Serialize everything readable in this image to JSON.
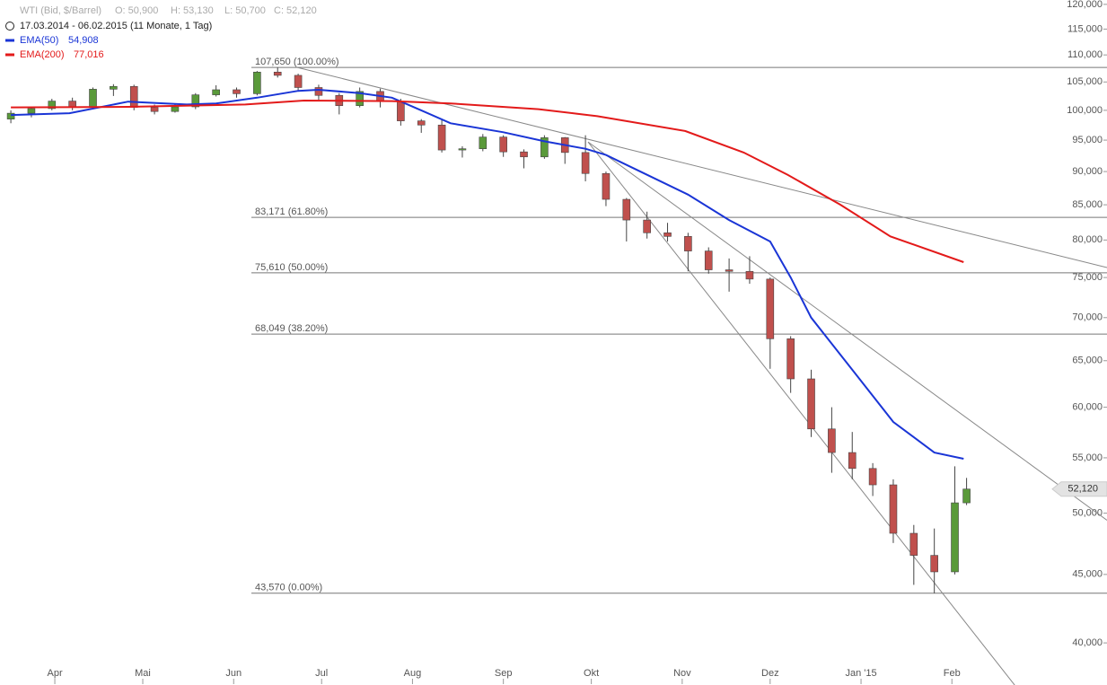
{
  "chart_data": {
    "type": "candlestick",
    "header": {
      "title": "WTI (Bid, $/Barrel)",
      "ohlc": [
        "O: 50,900",
        "H: 53,130",
        "L: 50,700",
        "C: 52,120"
      ],
      "range": "17.03.2014 - 06.02.2015 (11 Monate, 1 Tag)"
    },
    "log_scale": true,
    "xlim": [
      -3.7,
      373.9
    ],
    "ylim": [
      38.55,
      120.9
    ],
    "xticks": [
      {
        "value": 15,
        "label": "Apr"
      },
      {
        "value": 45,
        "label": "Mai"
      },
      {
        "value": 76,
        "label": "Jun"
      },
      {
        "value": 106,
        "label": "Jul"
      },
      {
        "value": 137,
        "label": "Aug"
      },
      {
        "value": 168,
        "label": "Sep"
      },
      {
        "value": 198,
        "label": "Okt"
      },
      {
        "value": 229,
        "label": "Nov"
      },
      {
        "value": 259,
        "label": "Dez"
      },
      {
        "value": 290,
        "label": "Jan '15"
      },
      {
        "value": 321,
        "label": "Feb"
      }
    ],
    "yticks": [
      {
        "value": 40,
        "label": "40,000"
      },
      {
        "value": 45,
        "label": "45,000"
      },
      {
        "value": 50,
        "label": "50,000"
      },
      {
        "value": 55,
        "label": "55,000"
      },
      {
        "value": 60,
        "label": "60,000"
      },
      {
        "value": 65,
        "label": "65,000"
      },
      {
        "value": 70,
        "label": "70,000"
      },
      {
        "value": 75,
        "label": "75,000"
      },
      {
        "value": 80,
        "label": "80,000"
      },
      {
        "value": 85,
        "label": "85,000"
      },
      {
        "value": 90,
        "label": "90,000"
      },
      {
        "value": 95,
        "label": "95,000"
      },
      {
        "value": 100,
        "label": "100,000"
      },
      {
        "value": 105,
        "label": "105,000"
      },
      {
        "value": 110,
        "label": "110,000"
      },
      {
        "value": 115,
        "label": "115,000"
      },
      {
        "value": 120,
        "label": "120,000"
      }
    ],
    "up_color": "#5a9a3a",
    "down_color": "#c0504d",
    "x": [
      0,
      7,
      14,
      21,
      28,
      35,
      42,
      49,
      56,
      63,
      70,
      77,
      84,
      91,
      98,
      105,
      112,
      119,
      126,
      133,
      140,
      147,
      154,
      161,
      168,
      175,
      182,
      189,
      196,
      203,
      210,
      217,
      224,
      231,
      238,
      245,
      252,
      259,
      266,
      273,
      280,
      287,
      294,
      301,
      308,
      315,
      322,
      326
    ],
    "open": [
      98.5,
      99.5,
      100.3,
      101.6,
      100.6,
      103.7,
      104.2,
      100.5,
      99.8,
      100.6,
      102.7,
      103.6,
      102.9,
      106.8,
      106.2,
      104,
      102.6,
      100.8,
      103.3,
      101.5,
      98.2,
      97.5,
      93.4,
      93.6,
      95.5,
      93.1,
      92.3,
      95.4,
      93,
      89.7,
      85.8,
      82.8,
      81,
      80.5,
      78.5,
      76,
      75.8,
      74.8,
      67.5,
      63,
      57.8,
      55.5,
      54,
      52.5,
      48.3,
      46.5,
      45.2,
      50.9
    ],
    "high": [
      100,
      100.5,
      102,
      102.2,
      104,
      104.6,
      104.5,
      101,
      101.2,
      103,
      104.4,
      104,
      107,
      107.65,
      106.5,
      104.5,
      103,
      104,
      103.8,
      102,
      98.5,
      98.5,
      94,
      96,
      95.8,
      93.5,
      95.8,
      95.5,
      95.8,
      90,
      86,
      84,
      82.4,
      81,
      79,
      77.5,
      77.8,
      75,
      67.8,
      64,
      60,
      57.5,
      54.5,
      53,
      49,
      48.7,
      54.2,
      53.13
    ],
    "low": [
      97.8,
      98.8,
      100,
      100,
      100.3,
      102.5,
      100,
      99.3,
      99.6,
      100.2,
      102.4,
      102.2,
      102.6,
      105.8,
      103.5,
      101.8,
      99.3,
      100.5,
      100.5,
      97.4,
      96.2,
      93,
      92.2,
      93.2,
      92.3,
      90.5,
      92,
      91.2,
      88.5,
      84.8,
      79.8,
      80.2,
      79.8,
      75.8,
      75.5,
      73.2,
      74.2,
      64.1,
      61.5,
      57,
      53.6,
      53,
      51.5,
      47.5,
      44.2,
      43.57,
      45,
      50.7
    ],
    "close": [
      99.5,
      100.3,
      101.6,
      100.6,
      103.7,
      104.2,
      100.5,
      99.8,
      100.6,
      102.7,
      103.6,
      102.9,
      106.8,
      106.2,
      104,
      102.6,
      100.8,
      103.3,
      101.5,
      98.2,
      97.5,
      93.4,
      93.6,
      95.5,
      93.1,
      92.3,
      95.4,
      93,
      89.7,
      85.8,
      82.8,
      81,
      80.5,
      78.5,
      76,
      75.8,
      74.8,
      67.5,
      63,
      57.8,
      55.5,
      54,
      52.5,
      48.3,
      46.5,
      45.2,
      50.9,
      52.12
    ],
    "last_label": "52,120",
    "series": [
      {
        "name": "EMA(50)",
        "color": "#1a35d6",
        "last_label": "54,908",
        "x": [
          0,
          20,
          40,
          60,
          70,
          84,
          98,
          105,
          119,
          130,
          140,
          150,
          168,
          182,
          196,
          203,
          217,
          231,
          245,
          259,
          266,
          273,
          287,
          301,
          315,
          325
        ],
        "values": [
          99.2,
          99.5,
          101.5,
          101,
          101.2,
          102.2,
          103.4,
          103.6,
          103,
          102.2,
          100,
          97.8,
          96.3,
          94.8,
          93.6,
          92.6,
          89.5,
          86.5,
          82.8,
          79.8,
          75,
          70,
          64,
          58.5,
          55.5,
          54.908
        ]
      },
      {
        "name": "EMA(200)",
        "color": "#e31a1a",
        "last_label": "77,016",
        "x": [
          0,
          40,
          80,
          100,
          130,
          150,
          180,
          200,
          230,
          250,
          265,
          283,
          300,
          325
        ],
        "values": [
          100.5,
          100.6,
          101,
          101.7,
          101.6,
          101.2,
          100.2,
          99,
          96.5,
          93,
          89.5,
          85,
          80.5,
          77.016
        ]
      }
    ],
    "levels": [
      {
        "value": 107.65,
        "label": "107,650 (100.00%)"
      },
      {
        "value": 83.171,
        "label": "83,171 (61.80%)"
      },
      {
        "value": 75.61,
        "label": "75,610 (50.00%)"
      },
      {
        "value": 68.049,
        "label": "68,049 (38.20%)"
      },
      {
        "value": 43.57,
        "label": "43,570 (0.00%)"
      }
    ],
    "trendlines": [
      {
        "x": [
          97.4,
          373.9
        ],
        "values": [
          107.7,
          76.3
        ]
      },
      {
        "x": [
          196.9,
          373.9
        ],
        "values": [
          94.7,
          49.4
        ]
      },
      {
        "x": [
          196.9,
          342.4
        ],
        "values": [
          94.7,
          37.2
        ]
      }
    ]
  }
}
